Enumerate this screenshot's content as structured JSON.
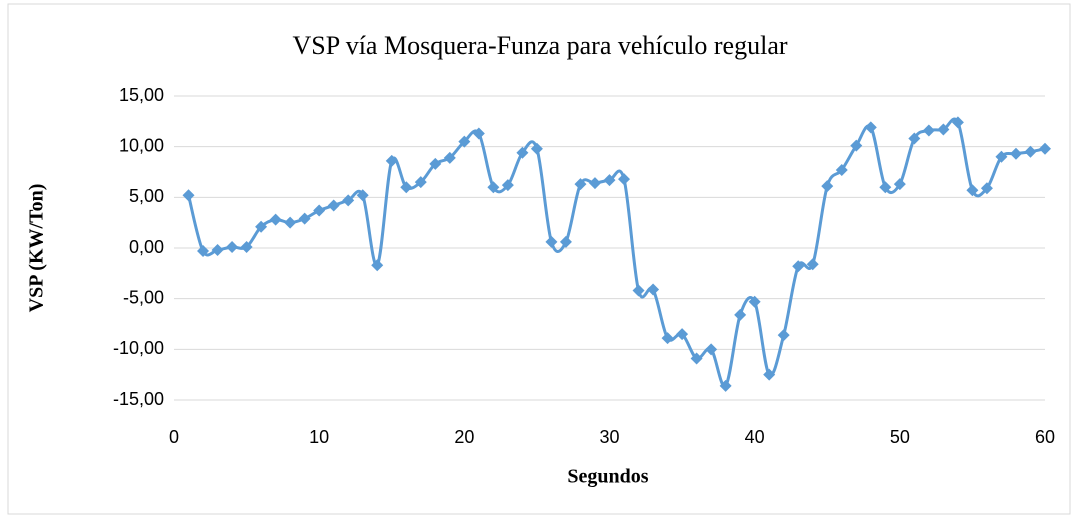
{
  "chart_data": {
    "type": "line",
    "title": "VSP vía Mosquera-Funza para vehículo regular",
    "x_label": "Segundos",
    "y_label": "VSP (KW/Ton)",
    "x": [
      1,
      2,
      3,
      4,
      5,
      6,
      7,
      8,
      9,
      10,
      11,
      12,
      13,
      14,
      15,
      16,
      17,
      18,
      19,
      20,
      21,
      22,
      23,
      24,
      25,
      26,
      27,
      28,
      29,
      30,
      31,
      32,
      33,
      34,
      35,
      36,
      37,
      38,
      39,
      40,
      41,
      42,
      43,
      44,
      45,
      46,
      47,
      48,
      49,
      50,
      51,
      52,
      53,
      54,
      55,
      56,
      57,
      58,
      59,
      60
    ],
    "series": [
      {
        "name": "VSP",
        "color": "#5b9bd5",
        "values": [
          5.2,
          -0.3,
          -0.2,
          0.1,
          0.1,
          2.1,
          2.8,
          2.5,
          2.9,
          3.7,
          4.2,
          4.7,
          5.2,
          -1.7,
          8.6,
          6.0,
          6.5,
          8.3,
          8.9,
          10.5,
          11.3,
          6.0,
          6.2,
          9.4,
          9.8,
          0.6,
          0.6,
          6.3,
          6.4,
          6.7,
          6.8,
          -4.2,
          -4.1,
          -8.9,
          -8.5,
          -10.9,
          -10.0,
          -13.6,
          -6.6,
          -5.3,
          -12.5,
          -8.6,
          -1.8,
          -1.6,
          6.1,
          7.7,
          10.1,
          11.9,
          6.0,
          6.3,
          10.8,
          11.6,
          11.7,
          12.4,
          5.7,
          5.9,
          9.0,
          9.3,
          9.5,
          9.8
        ]
      }
    ],
    "xlim": [
      0,
      60
    ],
    "xticks": [
      0,
      10,
      20,
      30,
      40,
      50,
      60
    ],
    "ylim": [
      -15,
      15
    ],
    "yticks": [
      {
        "value": -15,
        "label": "-15,00"
      },
      {
        "value": -10,
        "label": "-10,00"
      },
      {
        "value": -5,
        "label": "-5,00"
      },
      {
        "value": 0,
        "label": "0,00"
      },
      {
        "value": 5,
        "label": "5,00"
      },
      {
        "value": 10,
        "label": "10,00"
      },
      {
        "value": 15,
        "label": "15,00"
      }
    ],
    "grid": true,
    "smooth": true
  }
}
